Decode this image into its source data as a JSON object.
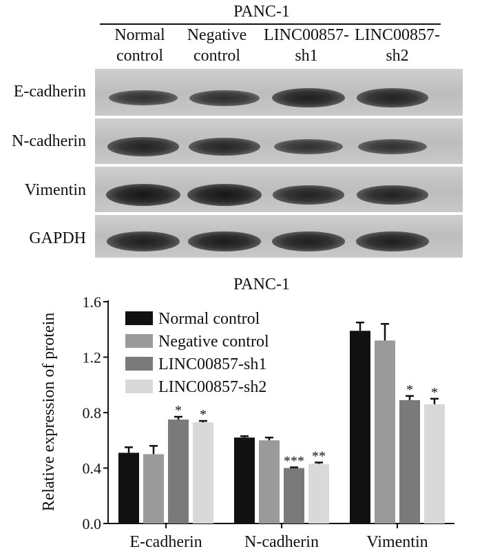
{
  "blot": {
    "cell_line": "PANC-1",
    "lanes": [
      {
        "line1": "Normal",
        "line2": "control"
      },
      {
        "line1": "Negative",
        "line2": "control"
      },
      {
        "line1": "LINC00857-",
        "line2": "sh1"
      },
      {
        "line1": "LINC00857-",
        "line2": "sh2"
      }
    ],
    "rows": [
      {
        "label": "E-cadherin",
        "bands": [
          0.55,
          0.6,
          0.85,
          0.8
        ]
      },
      {
        "label": "N-cadherin",
        "bands": [
          0.8,
          0.75,
          0.55,
          0.55
        ]
      },
      {
        "label": "Vimentin",
        "bands": [
          1.0,
          1.0,
          0.8,
          0.8
        ]
      },
      {
        "label": "GAPDH",
        "bands": [
          0.85,
          0.9,
          0.85,
          0.85
        ]
      }
    ]
  },
  "chart_data": {
    "type": "bar",
    "title": "PANC-1",
    "xlabel": "",
    "ylabel": "Relative expression of protein",
    "ylim": [
      0.0,
      1.6
    ],
    "yticks": [
      "0.0",
      "0.4",
      "0.8",
      "1.2",
      "1.6"
    ],
    "ytick_values": [
      0.0,
      0.4,
      0.8,
      1.2,
      1.6
    ],
    "categories": [
      "E-cadherin",
      "N-cadherin",
      "Vimentin"
    ],
    "series": [
      {
        "name": "Normal control",
        "color": "#111111",
        "values": [
          0.51,
          0.62,
          1.39
        ],
        "errors": [
          0.04,
          0.01,
          0.06
        ],
        "sig": [
          "",
          "",
          ""
        ]
      },
      {
        "name": "Negative control",
        "color": "#9a9a9a",
        "values": [
          0.5,
          0.6,
          1.32
        ],
        "errors": [
          0.06,
          0.02,
          0.12
        ],
        "sig": [
          "",
          "",
          ""
        ]
      },
      {
        "name": "LINC00857-sh1",
        "color": "#7a7a7a",
        "values": [
          0.75,
          0.4,
          0.89
        ],
        "errors": [
          0.02,
          0.005,
          0.03
        ],
        "sig": [
          "*",
          "***",
          "*"
        ]
      },
      {
        "name": "LINC00857-sh2",
        "color": "#d9d9d9",
        "values": [
          0.73,
          0.43,
          0.86
        ],
        "errors": [
          0.01,
          0.01,
          0.04
        ],
        "sig": [
          "*",
          "**",
          "*"
        ]
      }
    ],
    "legend_position": "top-left",
    "grid": false
  }
}
